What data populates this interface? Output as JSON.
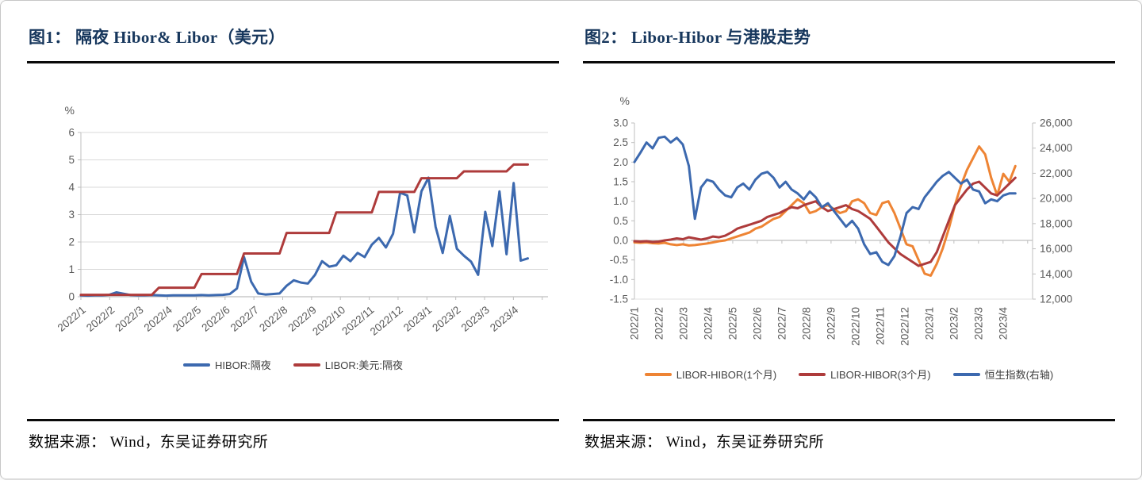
{
  "panels": [
    {
      "title": "图1：  隔夜 Hibor& Libor（美元）",
      "source": "数据来源： Wind，东吴证券研究所"
    },
    {
      "title": "图2：  Libor-Hibor 与港股走势",
      "source": "数据来源： Wind，东吴证券研究所"
    }
  ],
  "chart_data": [
    {
      "type": "line",
      "title": "隔夜 Hibor& Libor（美元）",
      "ylabel": "%",
      "ylim": [
        0,
        6
      ],
      "grid": true,
      "zeroline": false,
      "legend_position": "bottom",
      "yticks": [
        {
          "v": 0,
          "label": "0"
        },
        {
          "v": 1,
          "label": "1"
        },
        {
          "v": 2,
          "label": "2"
        },
        {
          "v": 3,
          "label": "3"
        },
        {
          "v": 4,
          "label": "4"
        },
        {
          "v": 5,
          "label": "5"
        },
        {
          "v": 6,
          "label": "6"
        }
      ],
      "categories": [
        "2022/1",
        "2022/2",
        "2022/3",
        "2022/4",
        "2022/5",
        "2022/6",
        "2022/7",
        "2022/8",
        "2022/9",
        "2022/10",
        "2022/11",
        "2022/12",
        "2023/1",
        "2023/2",
        "2023/3",
        "2023/4"
      ],
      "x_span_months": 15.5,
      "x_axis_months": 16.2,
      "series": [
        {
          "name": "HIBOR:隔夜",
          "color": "#3C69AF",
          "axis": "left",
          "values": [
            0.05,
            0.04,
            0.05,
            0.05,
            0.07,
            0.16,
            0.11,
            0.06,
            0.05,
            0.05,
            0.06,
            0.05,
            0.04,
            0.05,
            0.05,
            0.05,
            0.05,
            0.06,
            0.05,
            0.06,
            0.07,
            0.1,
            0.3,
            1.45,
            0.55,
            0.12,
            0.08,
            0.1,
            0.12,
            0.4,
            0.6,
            0.52,
            0.48,
            0.8,
            1.3,
            1.1,
            1.15,
            1.5,
            1.3,
            1.6,
            1.45,
            1.9,
            2.15,
            1.8,
            2.3,
            3.8,
            3.7,
            2.35,
            3.85,
            4.35,
            2.55,
            1.6,
            2.95,
            1.75,
            1.5,
            1.28,
            0.8,
            3.1,
            1.85,
            3.85,
            1.55,
            4.15,
            1.32,
            1.4
          ]
        },
        {
          "name": "LIBOR:美元:隔夜",
          "color": "#AE3B3B",
          "axis": "left",
          "values": [
            0.07,
            0.07,
            0.07,
            0.07,
            0.07,
            0.07,
            0.07,
            0.07,
            0.07,
            0.07,
            0.07,
            0.33,
            0.33,
            0.33,
            0.33,
            0.33,
            0.33,
            0.83,
            0.83,
            0.83,
            0.83,
            0.83,
            0.83,
            1.58,
            1.58,
            1.58,
            1.58,
            1.58,
            1.58,
            2.33,
            2.33,
            2.33,
            2.33,
            2.33,
            2.33,
            2.33,
            3.08,
            3.08,
            3.08,
            3.08,
            3.08,
            3.08,
            3.83,
            3.83,
            3.83,
            3.83,
            3.83,
            3.83,
            4.33,
            4.33,
            4.33,
            4.33,
            4.33,
            4.33,
            4.58,
            4.58,
            4.58,
            4.58,
            4.58,
            4.58,
            4.58,
            4.83,
            4.83,
            4.83
          ]
        }
      ]
    },
    {
      "type": "line",
      "title": "Libor-Hibor 与港股走势",
      "ylabel": "%",
      "ylim": [
        -1.5,
        3.0
      ],
      "y2lim": [
        12000,
        26000
      ],
      "grid": false,
      "zeroline": true,
      "legend_position": "bottom",
      "yticks": [
        {
          "v": 3.0,
          "label": "3.0"
        },
        {
          "v": 2.5,
          "label": "2.5"
        },
        {
          "v": 2.0,
          "label": "2.0"
        },
        {
          "v": 1.5,
          "label": "1.5"
        },
        {
          "v": 1.0,
          "label": "1.0"
        },
        {
          "v": 0.5,
          "label": "0.5"
        },
        {
          "v": 0.0,
          "label": "0.0"
        },
        {
          "v": -0.5,
          "label": "-0.5"
        },
        {
          "v": -1.0,
          "label": "-1.0"
        },
        {
          "v": -1.5,
          "label": "-1.5"
        }
      ],
      "y2ticks": [
        {
          "v": 26000,
          "label": "26,000"
        },
        {
          "v": 24000,
          "label": "24,000"
        },
        {
          "v": 22000,
          "label": "22,000"
        },
        {
          "v": 20000,
          "label": "20,000"
        },
        {
          "v": 18000,
          "label": "18,000"
        },
        {
          "v": 16000,
          "label": "16,000"
        },
        {
          "v": 14000,
          "label": "14,000"
        },
        {
          "v": 12000,
          "label": "12,000"
        }
      ],
      "categories": [
        "2022/1",
        "2022/2",
        "2022/3",
        "2022/4",
        "2022/5",
        "2022/6",
        "2022/7",
        "2022/8",
        "2022/9",
        "2022/10",
        "2022/11",
        "2022/12",
        "2023/1",
        "2023/2",
        "2023/3",
        "2023/4"
      ],
      "x_span_months": 15.5,
      "x_axis_months": 16.2,
      "series": [
        {
          "name": "LIBOR-HIBOR(1个月)",
          "color": "#EE8434",
          "axis": "left",
          "values": [
            -0.05,
            -0.06,
            -0.05,
            -0.07,
            -0.08,
            -0.06,
            -0.1,
            -0.12,
            -0.1,
            -0.13,
            -0.12,
            -0.1,
            -0.08,
            -0.05,
            -0.02,
            0.0,
            0.05,
            0.1,
            0.15,
            0.2,
            0.3,
            0.35,
            0.45,
            0.55,
            0.6,
            0.75,
            0.9,
            1.05,
            0.95,
            0.7,
            0.75,
            0.85,
            0.9,
            0.8,
            0.7,
            0.75,
            1.0,
            1.05,
            0.95,
            0.7,
            0.65,
            0.95,
            1.0,
            0.7,
            0.3,
            -0.1,
            -0.15,
            -0.5,
            -0.85,
            -0.9,
            -0.6,
            -0.2,
            0.3,
            0.9,
            1.4,
            1.8,
            2.1,
            2.4,
            2.2,
            1.6,
            1.15,
            1.7,
            1.5,
            1.9
          ]
        },
        {
          "name": "LIBOR-HIBOR(3个月)",
          "color": "#AE3B3B",
          "axis": "left",
          "values": [
            -0.02,
            -0.03,
            -0.02,
            -0.04,
            -0.03,
            0.0,
            0.02,
            0.05,
            0.03,
            0.08,
            0.05,
            0.02,
            0.05,
            0.1,
            0.08,
            0.12,
            0.2,
            0.3,
            0.35,
            0.4,
            0.45,
            0.5,
            0.6,
            0.65,
            0.7,
            0.78,
            0.85,
            0.82,
            0.9,
            0.95,
            1.0,
            0.85,
            0.75,
            0.8,
            0.85,
            0.9,
            0.8,
            0.75,
            0.65,
            0.55,
            0.35,
            0.15,
            -0.05,
            -0.2,
            -0.35,
            -0.45,
            -0.55,
            -0.65,
            -0.6,
            -0.55,
            -0.3,
            0.1,
            0.5,
            0.9,
            1.1,
            1.3,
            1.45,
            1.5,
            1.35,
            1.2,
            1.15,
            1.3,
            1.45,
            1.6
          ]
        },
        {
          "name": "恒生指数(右轴)",
          "color": "#3C69AF",
          "axis": "right",
          "values": [
            22900,
            23650,
            24450,
            23980,
            24820,
            24910,
            24450,
            24820,
            24290,
            22580,
            18380,
            20870,
            21490,
            21330,
            20710,
            20240,
            20090,
            20870,
            21180,
            20710,
            21490,
            21960,
            22110,
            21640,
            20870,
            21330,
            20710,
            20400,
            19930,
            20560,
            20090,
            19310,
            19620,
            19000,
            18380,
            17760,
            18220,
            17600,
            16360,
            15580,
            15730,
            14960,
            14710,
            15420,
            16980,
            18840,
            19310,
            19160,
            20090,
            20710,
            21330,
            21800,
            22110,
            21640,
            21180,
            21490,
            20710,
            20560,
            19620,
            19930,
            19780,
            20240,
            20400,
            20400
          ]
        }
      ]
    }
  ]
}
